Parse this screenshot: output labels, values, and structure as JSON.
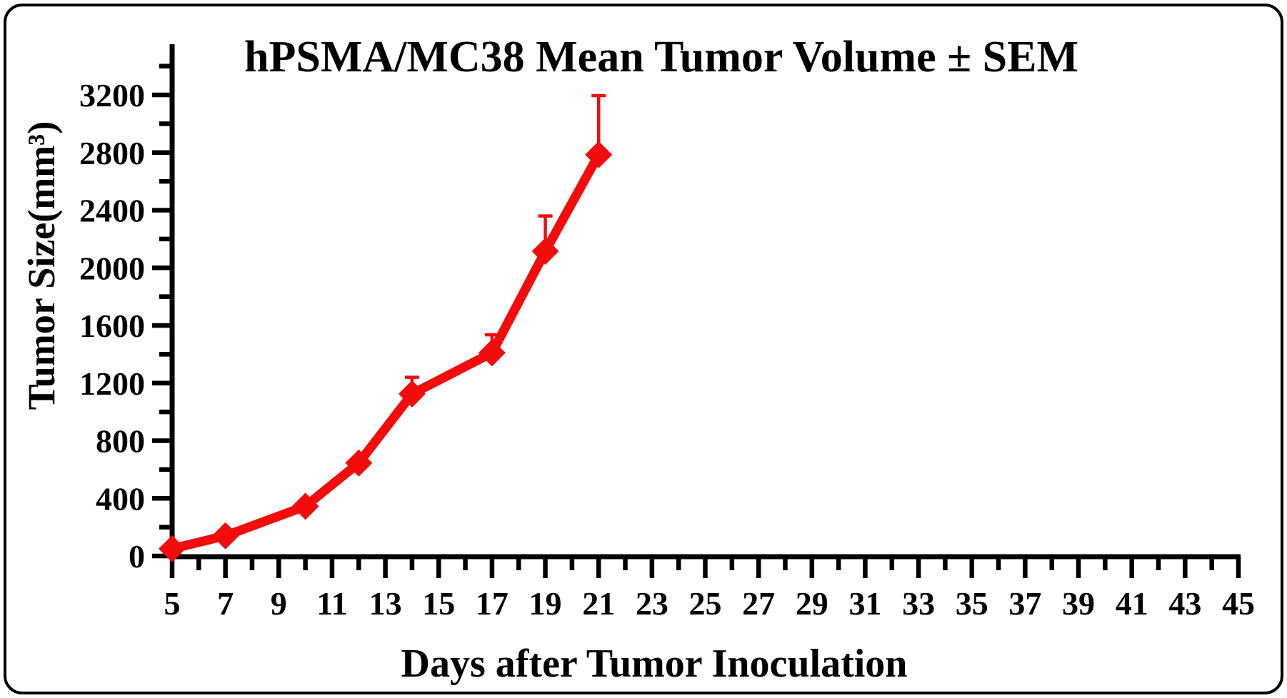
{
  "figure": {
    "title": "hPSMA/MC38 Mean Tumor Volume ± SEM",
    "x_axis_label": "Days after Tumor Inoculation",
    "y_axis_label": "Tumor Size(mm³)"
  },
  "chart_data": {
    "type": "line",
    "title": "hPSMA/MC38 Mean Tumor Volume ± SEM",
    "xlabel": "Days after Tumor Inoculation",
    "ylabel": "Tumor Size(mm³)",
    "grid": false,
    "legend": "none",
    "error_bars": "upper SEM only",
    "xlim": [
      5,
      45
    ],
    "ylim": [
      0,
      3400
    ],
    "x_major_tick_step": 2,
    "x_minor_tick_step": 1,
    "y_major_tick_step": 400,
    "y_minor_tick_step": 200,
    "x_tick_labels": [
      "5",
      "7",
      "9",
      "11",
      "13",
      "15",
      "17",
      "19",
      "21",
      "23",
      "25",
      "27",
      "29",
      "31",
      "33",
      "35",
      "37",
      "39",
      "41",
      "43",
      "45"
    ],
    "y_tick_labels": [
      "0",
      "400",
      "800",
      "1200",
      "1600",
      "2000",
      "2400",
      "2800",
      "3200"
    ],
    "series": [
      {
        "name": "hPSMA/MC38 mean tumor volume",
        "marker": "diamond",
        "color": "#f20c0c",
        "x": [
          5,
          7,
          10,
          12,
          14,
          17,
          19,
          21
        ],
        "y": [
          50,
          140,
          345,
          645,
          1125,
          1410,
          2115,
          2785
        ],
        "sem_upper": [
          0,
          0,
          0,
          0,
          115,
          125,
          245,
          410
        ]
      }
    ]
  },
  "colors": {
    "series_red": "#f20c0c",
    "axis_black": "#000000",
    "background": "#ffffff"
  }
}
